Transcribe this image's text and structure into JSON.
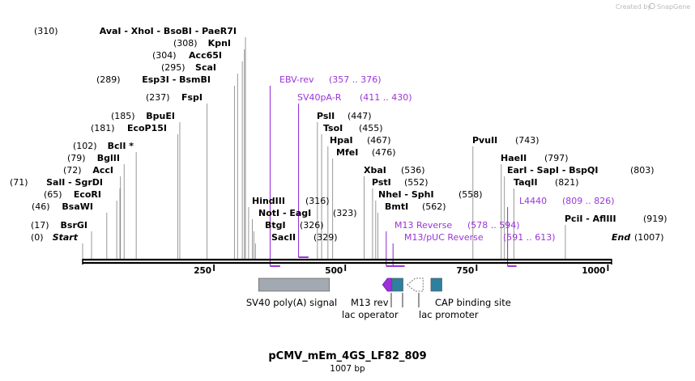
{
  "credit": "Created by",
  "brand": "SnapGene",
  "plasmid": {
    "name": "pCMV_mEm_4GS_LF82_809",
    "size_label": "1007 bp",
    "length": 1007
  },
  "axis_ticks": [
    {
      "label": "250",
      "pos": 250
    },
    {
      "label": "500",
      "pos": 500
    },
    {
      "label": "750",
      "pos": 750
    },
    {
      "label": "1000",
      "pos": 1000
    }
  ],
  "sites": [
    {
      "pos": 310,
      "pos_text": "(310)",
      "names": "AvaI  - XhoI  - BsoBI  - PaeR7I",
      "side": "left"
    },
    {
      "pos": 308,
      "pos_text": "(308)",
      "names": "KpnI",
      "side": "left"
    },
    {
      "pos": 304,
      "pos_text": "(304)",
      "names": "Acc65I",
      "side": "left"
    },
    {
      "pos": 295,
      "pos_text": "(295)",
      "names": "ScaI",
      "side": "left"
    },
    {
      "pos": 289,
      "pos_text": "(289)",
      "names": "Esp3I  - BsmBI",
      "side": "left"
    },
    {
      "pos": 237,
      "pos_text": "(237)",
      "names": "FspI",
      "side": "left"
    },
    {
      "pos": 185,
      "pos_text": "(185)",
      "names": "BpuEI",
      "side": "left"
    },
    {
      "pos": 181,
      "pos_text": "(181)",
      "names": "EcoP15I",
      "side": "left"
    },
    {
      "pos": 102,
      "pos_text": "(102)",
      "names": "BclI *",
      "side": "left"
    },
    {
      "pos": 79,
      "pos_text": "(79)",
      "names": "BglII",
      "side": "left"
    },
    {
      "pos": 72,
      "pos_text": "(72)",
      "names": "AccI",
      "side": "left"
    },
    {
      "pos": 71,
      "pos_text": "(71)",
      "names": "SalI  - SgrDI",
      "side": "left"
    },
    {
      "pos": 65,
      "pos_text": "(65)",
      "names": "EcoRI",
      "side": "left"
    },
    {
      "pos": 46,
      "pos_text": "(46)",
      "names": "BsaWI",
      "side": "left"
    },
    {
      "pos": 17,
      "pos_text": "(17)",
      "names": "BsrGI",
      "side": "left"
    },
    {
      "pos": 0,
      "pos_text": "(0)",
      "names": "Start",
      "side": "left",
      "italic": true
    },
    {
      "pos": 316,
      "pos_text": "(316)",
      "names": "HindIII",
      "side": "right"
    },
    {
      "pos": 323,
      "pos_text": "(323)",
      "names": "NotI  - EagI",
      "side": "right"
    },
    {
      "pos": 326,
      "pos_text": "(326)",
      "names": "BtgI",
      "side": "right"
    },
    {
      "pos": 329,
      "pos_text": "(329)",
      "names": "SacII",
      "side": "right"
    },
    {
      "pos": 447,
      "pos_text": "(447)",
      "names": "PslI",
      "side": "right"
    },
    {
      "pos": 455,
      "pos_text": "(455)",
      "names": "TsoI",
      "side": "right"
    },
    {
      "pos": 467,
      "pos_text": "(467)",
      "names": "HpaI",
      "side": "right"
    },
    {
      "pos": 476,
      "pos_text": "(476)",
      "names": "MfeI",
      "side": "right"
    },
    {
      "pos": 536,
      "pos_text": "(536)",
      "names": "XbaI",
      "side": "right"
    },
    {
      "pos": 552,
      "pos_text": "(552)",
      "names": "PstI",
      "side": "right"
    },
    {
      "pos": 558,
      "pos_text": "(558)",
      "names": "NheI  - SphI",
      "side": "right"
    },
    {
      "pos": 562,
      "pos_text": "(562)",
      "names": "BmtI",
      "side": "right"
    },
    {
      "pos": 743,
      "pos_text": "(743)",
      "names": "PvuII",
      "side": "right"
    },
    {
      "pos": 797,
      "pos_text": "(797)",
      "names": "HaeII",
      "side": "right"
    },
    {
      "pos": 803,
      "pos_text": "(803)",
      "names": "EarI  - SapI  - BspQI",
      "side": "right"
    },
    {
      "pos": 821,
      "pos_text": "(821)",
      "names": "TaqII",
      "side": "right"
    },
    {
      "pos": 919,
      "pos_text": "(919)",
      "names": "PciI  - AflIII",
      "side": "right"
    },
    {
      "pos": 1007,
      "pos_text": "(1007)",
      "names": "End",
      "side": "right",
      "italic": true
    }
  ],
  "primers": [
    {
      "name": "EBV-rev",
      "range": "(357 .. 376)",
      "start": 357,
      "end": 376
    },
    {
      "name": "SV40pA-R",
      "range": "(411 .. 430)",
      "start": 411,
      "end": 430
    },
    {
      "name": "M13 Reverse",
      "range": "(578 .. 594)",
      "start": 578,
      "end": 594
    },
    {
      "name": "M13/pUC Reverse",
      "range": "(591 .. 613)",
      "start": 591,
      "end": 613
    },
    {
      "name": "L4440",
      "range": "(809 .. 826)",
      "start": 809,
      "end": 826
    }
  ],
  "features": [
    {
      "name": "SV40 poly(A) signal",
      "start": 335,
      "end": 470,
      "color": "#a3a9b0",
      "shape": "box"
    },
    {
      "name": "M13 rev",
      "start": 571,
      "end": 588,
      "color": "#9b30dd",
      "shape": "arrow-left"
    },
    {
      "name": "lac operator",
      "start": 589,
      "end": 610,
      "color": "#2f7f9e",
      "shape": "box"
    },
    {
      "name": "lac promoter",
      "start": 618,
      "end": 648,
      "color": "#ffffff",
      "shape": "arrow-left"
    },
    {
      "name": "CAP binding site",
      "start": 663,
      "end": 684,
      "color": "#2f7f9e",
      "shape": "box"
    }
  ]
}
